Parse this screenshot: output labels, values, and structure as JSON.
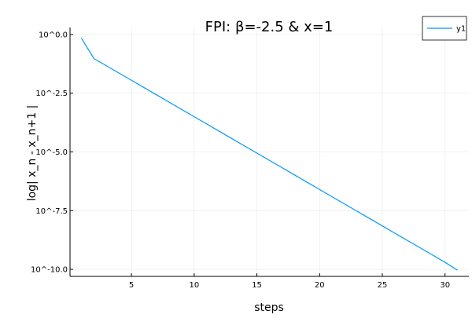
{
  "chart_data": {
    "type": "line",
    "title": "FPI: β=-2.5 & x=1",
    "xlabel": "steps",
    "ylabel": "log| x_n - x_n+1 |",
    "xlim": [
      0.1,
      31.9
    ],
    "ylim": [
      -10.3,
      0.3
    ],
    "grid": true,
    "legend_position": "top-right",
    "x_ticks": [
      5,
      10,
      15,
      20,
      25,
      30
    ],
    "x_tick_labels": [
      "5",
      "10",
      "15",
      "20",
      "25",
      "30"
    ],
    "y_ticks": [
      0,
      -2.5,
      -5,
      -7.5,
      -10
    ],
    "y_tick_labels": [
      "10^0.0",
      "10^-2.5",
      "10^-5.0",
      "10^-7.5",
      "10^-10.0"
    ],
    "series": [
      {
        "name": "y1",
        "color": "#009af9",
        "x": [
          1,
          2,
          3,
          4,
          5,
          6,
          7,
          8,
          9,
          10,
          11,
          12,
          13,
          14,
          15,
          16,
          17,
          18,
          19,
          20,
          21,
          22,
          23,
          24,
          25,
          26,
          27,
          28,
          29,
          30,
          31
        ],
        "y": [
          -0.15,
          -1.02,
          -1.33,
          -1.64,
          -1.95,
          -2.26,
          -2.57,
          -2.88,
          -3.19,
          -3.5,
          -3.81,
          -4.12,
          -4.43,
          -4.74,
          -5.05,
          -5.36,
          -5.67,
          -5.98,
          -6.29,
          -6.6,
          -6.91,
          -7.22,
          -7.53,
          -7.84,
          -8.15,
          -8.46,
          -8.77,
          -9.08,
          -9.39,
          -9.7,
          -10.04
        ]
      }
    ]
  }
}
